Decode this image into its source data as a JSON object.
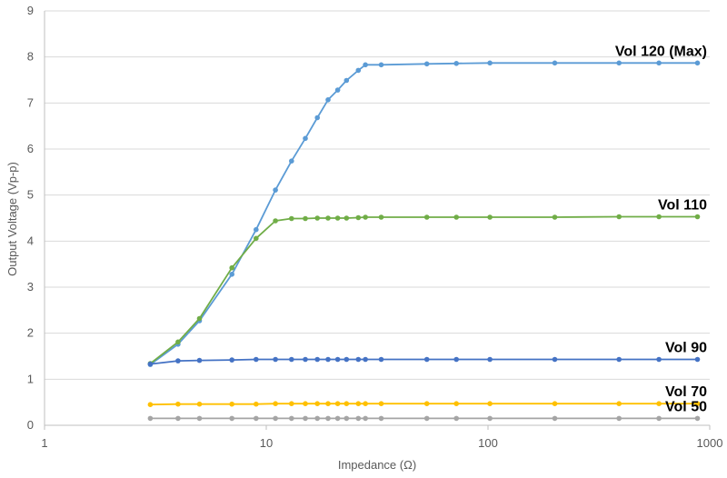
{
  "chart_data": {
    "type": "line",
    "xlabel": "Impedance (Ω)",
    "ylabel": "Output Voltage (Vp-p)",
    "x_scale": "log",
    "xlim": [
      1,
      1000
    ],
    "ylim": [
      0,
      9
    ],
    "x_ticks": [
      "1",
      "10",
      "100",
      "1000"
    ],
    "y_ticks": [
      "0",
      "1",
      "2",
      "3",
      "4",
      "5",
      "6",
      "7",
      "8",
      "9"
    ],
    "grid": "horizontal",
    "legend": "none",
    "series": [
      {
        "name": "Vol 120 (Max)",
        "color": "#5B9BD5",
        "x": [
          3,
          4,
          5,
          7,
          9,
          11,
          13,
          15,
          17,
          19,
          21,
          23,
          26,
          28,
          33,
          53,
          72,
          102,
          200,
          390,
          590,
          880
        ],
        "y": [
          1.32,
          1.76,
          2.27,
          3.28,
          4.25,
          5.11,
          5.74,
          6.23,
          6.68,
          7.07,
          7.28,
          7.49,
          7.71,
          7.83,
          7.83,
          7.85,
          7.86,
          7.87,
          7.87,
          7.87,
          7.87,
          7.87
        ]
      },
      {
        "name": "Vol 110",
        "color": "#70AD47",
        "x": [
          3,
          4,
          5,
          7,
          9,
          11,
          13,
          15,
          17,
          19,
          21,
          23,
          26,
          28,
          33,
          53,
          72,
          102,
          200,
          390,
          590,
          880
        ],
        "y": [
          1.34,
          1.81,
          2.32,
          3.42,
          4.06,
          4.44,
          4.49,
          4.49,
          4.5,
          4.5,
          4.5,
          4.5,
          4.51,
          4.52,
          4.52,
          4.52,
          4.52,
          4.52,
          4.52,
          4.53,
          4.53,
          4.53
        ]
      },
      {
        "name": "Vol 90",
        "color": "#4472C4",
        "x": [
          3,
          4,
          5,
          7,
          9,
          11,
          13,
          15,
          17,
          19,
          21,
          23,
          26,
          28,
          33,
          53,
          72,
          102,
          200,
          390,
          590,
          880
        ],
        "y": [
          1.33,
          1.4,
          1.41,
          1.42,
          1.43,
          1.43,
          1.43,
          1.43,
          1.43,
          1.43,
          1.43,
          1.43,
          1.43,
          1.43,
          1.43,
          1.43,
          1.43,
          1.43,
          1.43,
          1.43,
          1.43,
          1.43
        ]
      },
      {
        "name": "Vol 70",
        "color": "#FFC000",
        "x": [
          3,
          4,
          5,
          7,
          9,
          11,
          13,
          15,
          17,
          19,
          21,
          23,
          26,
          28,
          33,
          53,
          72,
          102,
          200,
          390,
          590,
          880
        ],
        "y": [
          0.45,
          0.46,
          0.46,
          0.46,
          0.46,
          0.47,
          0.47,
          0.47,
          0.47,
          0.47,
          0.47,
          0.47,
          0.47,
          0.47,
          0.47,
          0.47,
          0.47,
          0.47,
          0.47,
          0.47,
          0.47,
          0.47
        ]
      },
      {
        "name": "Vol 50",
        "color": "#A5A5A5",
        "x": [
          3,
          4,
          5,
          7,
          9,
          11,
          13,
          15,
          17,
          19,
          21,
          23,
          26,
          28,
          33,
          53,
          72,
          102,
          200,
          390,
          590,
          880
        ],
        "y": [
          0.15,
          0.15,
          0.15,
          0.15,
          0.15,
          0.15,
          0.15,
          0.15,
          0.15,
          0.15,
          0.15,
          0.15,
          0.15,
          0.15,
          0.15,
          0.15,
          0.15,
          0.15,
          0.15,
          0.15,
          0.15,
          0.15
        ]
      }
    ]
  }
}
